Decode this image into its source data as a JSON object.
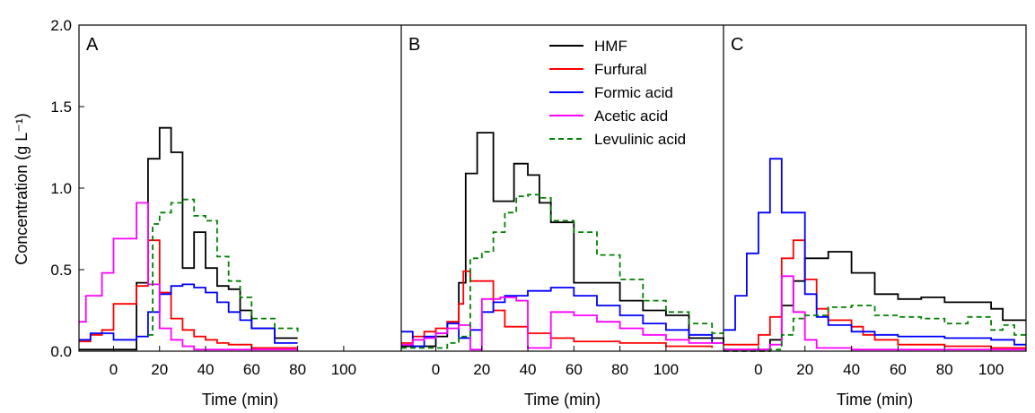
{
  "chart_data": {
    "type": "line",
    "ylabel": "Concentration (g L⁻¹)",
    "ylim": [
      0,
      2.0
    ],
    "yticks": [
      "0.0",
      "0.5",
      "1.0",
      "1.5",
      "2.0"
    ],
    "series_styles": [
      {
        "name": "HMF",
        "color": "#000000",
        "dashed": false
      },
      {
        "name": "Furfural",
        "color": "#ff0000",
        "dashed": false
      },
      {
        "name": "Formic acid",
        "color": "#0000ff",
        "dashed": false
      },
      {
        "name": "Acetic acid",
        "color": "#ff00ff",
        "dashed": false
      },
      {
        "name": "Levulinic acid",
        "color": "#008000",
        "dashed": true
      }
    ],
    "legend_position": "top-right of panel B",
    "panels": [
      {
        "label": "A",
        "xlabel": "Time (min)",
        "xlim": [
          -15,
          125
        ],
        "xticks": [
          0,
          20,
          40,
          60,
          80,
          100
        ],
        "steps": {
          "HMF": [
            [
              -15,
              0.01
            ],
            [
              10,
              0.42
            ],
            [
              15,
              1.18
            ],
            [
              20,
              1.37
            ],
            [
              25,
              1.22
            ],
            [
              30,
              0.51
            ],
            [
              35,
              0.73
            ],
            [
              40,
              0.51
            ],
            [
              45,
              0.4
            ],
            [
              50,
              0.38
            ],
            [
              55,
              0.25
            ],
            [
              60,
              0.14
            ],
            [
              70,
              0.08
            ],
            [
              80,
              0.08
            ]
          ],
          "Furfural": [
            [
              -15,
              0.06
            ],
            [
              -10,
              0.1
            ],
            [
              -5,
              0.13
            ],
            [
              0,
              0.29
            ],
            [
              10,
              0.4
            ],
            [
              15,
              0.68
            ],
            [
              20,
              0.36
            ],
            [
              25,
              0.2
            ],
            [
              30,
              0.13
            ],
            [
              35,
              0.09
            ],
            [
              40,
              0.07
            ],
            [
              45,
              0.05
            ],
            [
              50,
              0.04
            ],
            [
              60,
              0.02
            ],
            [
              80,
              0.02
            ]
          ],
          "Formic acid": [
            [
              -15,
              0.07
            ],
            [
              -10,
              0.11
            ],
            [
              -5,
              0.11
            ],
            [
              0,
              0.07
            ],
            [
              10,
              0.09
            ],
            [
              15,
              0.24
            ],
            [
              20,
              0.35
            ],
            [
              25,
              0.4
            ],
            [
              30,
              0.41
            ],
            [
              35,
              0.39
            ],
            [
              40,
              0.36
            ],
            [
              45,
              0.3
            ],
            [
              50,
              0.24
            ],
            [
              55,
              0.19
            ],
            [
              60,
              0.14
            ],
            [
              70,
              0.05
            ],
            [
              80,
              0.05
            ]
          ],
          "Acetic acid": [
            [
              -15,
              0.18
            ],
            [
              -12,
              0.34
            ],
            [
              -5,
              0.48
            ],
            [
              0,
              0.69
            ],
            [
              10,
              0.91
            ],
            [
              15,
              0.41
            ],
            [
              20,
              0.14
            ],
            [
              25,
              0.07
            ],
            [
              30,
              0.03
            ],
            [
              35,
              0.01
            ],
            [
              45,
              0.01
            ],
            [
              80,
              0.01
            ]
          ],
          "Levulinic acid": [
            [
              15,
              0.1
            ],
            [
              17,
              0.78
            ],
            [
              20,
              0.85
            ],
            [
              25,
              0.91
            ],
            [
              30,
              0.93
            ],
            [
              35,
              0.83
            ],
            [
              40,
              0.8
            ],
            [
              45,
              0.58
            ],
            [
              50,
              0.43
            ],
            [
              55,
              0.33
            ],
            [
              60,
              0.2
            ],
            [
              70,
              0.14
            ],
            [
              80,
              0.12
            ]
          ]
        }
      },
      {
        "label": "B",
        "xlabel": "Time (min)",
        "xlim": [
          -15,
          125
        ],
        "xticks": [
          0,
          20,
          40,
          60,
          80,
          100
        ],
        "steps": {
          "HMF": [
            [
              -15,
              0.03
            ],
            [
              0,
              0.09
            ],
            [
              5,
              0.18
            ],
            [
              10,
              0.42
            ],
            [
              13,
              1.09
            ],
            [
              18,
              1.34
            ],
            [
              25,
              0.92
            ],
            [
              30,
              0.92
            ],
            [
              34,
              1.15
            ],
            [
              40,
              1.08
            ],
            [
              45,
              0.91
            ],
            [
              50,
              0.79
            ],
            [
              60,
              0.42
            ],
            [
              70,
              0.42
            ],
            [
              80,
              0.31
            ],
            [
              90,
              0.25
            ],
            [
              100,
              0.22
            ],
            [
              110,
              0.08
            ],
            [
              125,
              0.05
            ]
          ],
          "Furfural": [
            [
              -15,
              0.05
            ],
            [
              -10,
              0.09
            ],
            [
              -5,
              0.12
            ],
            [
              0,
              0.14
            ],
            [
              5,
              0.18
            ],
            [
              10,
              0.29
            ],
            [
              12,
              0.49
            ],
            [
              15,
              0.43
            ],
            [
              25,
              0.25
            ],
            [
              30,
              0.15
            ],
            [
              40,
              0.11
            ],
            [
              50,
              0.08
            ],
            [
              60,
              0.06
            ],
            [
              80,
              0.05
            ],
            [
              100,
              0.03
            ],
            [
              120,
              0.02
            ]
          ],
          "Formic acid": [
            [
              -15,
              0.12
            ],
            [
              -10,
              0.03
            ],
            [
              -5,
              0.09
            ],
            [
              0,
              0.11
            ],
            [
              5,
              0.17
            ],
            [
              10,
              0.08
            ],
            [
              15,
              0.13
            ],
            [
              20,
              0.24
            ],
            [
              25,
              0.3
            ],
            [
              30,
              0.34
            ],
            [
              40,
              0.37
            ],
            [
              50,
              0.39
            ],
            [
              60,
              0.34
            ],
            [
              70,
              0.28
            ],
            [
              80,
              0.22
            ],
            [
              90,
              0.17
            ],
            [
              100,
              0.13
            ],
            [
              110,
              0.1
            ],
            [
              120,
              0.05
            ],
            [
              125,
              0.05
            ]
          ],
          "Acetic acid": [
            [
              -15,
              0.04
            ],
            [
              -10,
              0.07
            ],
            [
              -5,
              0.08
            ],
            [
              0,
              0.11
            ],
            [
              5,
              0.14
            ],
            [
              10,
              0.16
            ],
            [
              15,
              0.01
            ],
            [
              20,
              0.32
            ],
            [
              28,
              0.33
            ],
            [
              35,
              0.31
            ],
            [
              40,
              0.02
            ],
            [
              50,
              0.24
            ],
            [
              60,
              0.22
            ],
            [
              70,
              0.18
            ],
            [
              80,
              0.14
            ],
            [
              90,
              0.1
            ],
            [
              100,
              0.07
            ],
            [
              110,
              0.05
            ],
            [
              125,
              0.05
            ]
          ],
          "Levulinic acid": [
            [
              -15,
              0.02
            ],
            [
              5,
              0.05
            ],
            [
              10,
              0.09
            ],
            [
              15,
              0.57
            ],
            [
              20,
              0.61
            ],
            [
              25,
              0.73
            ],
            [
              30,
              0.85
            ],
            [
              35,
              0.95
            ],
            [
              40,
              0.96
            ],
            [
              45,
              0.94
            ],
            [
              50,
              0.8
            ],
            [
              60,
              0.73
            ],
            [
              70,
              0.59
            ],
            [
              80,
              0.44
            ],
            [
              90,
              0.31
            ],
            [
              100,
              0.24
            ],
            [
              110,
              0.17
            ],
            [
              120,
              0.11
            ],
            [
              125,
              0.11
            ]
          ]
        }
      },
      {
        "label": "C",
        "xlabel": "Time (min)",
        "xlim": [
          -15,
          115
        ],
        "xticks": [
          0,
          20,
          40,
          60,
          80,
          100
        ],
        "steps": {
          "HMF": [
            [
              -15,
              0.01
            ],
            [
              0,
              0.01
            ],
            [
              5,
              0.07
            ],
            [
              10,
              0.28
            ],
            [
              15,
              0.43
            ],
            [
              20,
              0.57
            ],
            [
              30,
              0.61
            ],
            [
              40,
              0.48
            ],
            [
              50,
              0.35
            ],
            [
              60,
              0.32
            ],
            [
              70,
              0.33
            ],
            [
              80,
              0.3
            ],
            [
              100,
              0.26
            ],
            [
              105,
              0.19
            ],
            [
              115,
              0.19
            ]
          ],
          "Furfural": [
            [
              -15,
              0.04
            ],
            [
              0,
              0.1
            ],
            [
              5,
              0.21
            ],
            [
              10,
              0.57
            ],
            [
              15,
              0.68
            ],
            [
              20,
              0.44
            ],
            [
              25,
              0.26
            ],
            [
              30,
              0.19
            ],
            [
              40,
              0.15
            ],
            [
              45,
              0.1
            ],
            [
              50,
              0.07
            ],
            [
              60,
              0.04
            ],
            [
              80,
              0.03
            ],
            [
              100,
              0.02
            ],
            [
              115,
              0.02
            ]
          ],
          "Formic acid": [
            [
              -15,
              0.13
            ],
            [
              -10,
              0.34
            ],
            [
              -5,
              0.6
            ],
            [
              0,
              0.85
            ],
            [
              5,
              1.18
            ],
            [
              10,
              0.85
            ],
            [
              20,
              0.35
            ],
            [
              25,
              0.21
            ],
            [
              30,
              0.16
            ],
            [
              40,
              0.12
            ],
            [
              50,
              0.1
            ],
            [
              60,
              0.09
            ],
            [
              80,
              0.08
            ],
            [
              100,
              0.07
            ],
            [
              110,
              0.04
            ],
            [
              115,
              0.04
            ]
          ],
          "Acetic acid": [
            [
              -15,
              0.01
            ],
            [
              0,
              0.01
            ],
            [
              5,
              0.04
            ],
            [
              10,
              0.46
            ],
            [
              15,
              0.24
            ],
            [
              20,
              0.07
            ],
            [
              25,
              0.02
            ],
            [
              40,
              0.01
            ],
            [
              115,
              0.01
            ]
          ],
          "Levulinic acid": [
            [
              -15,
              0.0
            ],
            [
              5,
              0.01
            ],
            [
              10,
              0.1
            ],
            [
              15,
              0.2
            ],
            [
              20,
              0.22
            ],
            [
              30,
              0.27
            ],
            [
              40,
              0.28
            ],
            [
              50,
              0.22
            ],
            [
              60,
              0.21
            ],
            [
              70,
              0.2
            ],
            [
              80,
              0.17
            ],
            [
              90,
              0.21
            ],
            [
              100,
              0.13
            ],
            [
              105,
              0.16
            ],
            [
              110,
              0.1
            ],
            [
              115,
              0.1
            ]
          ]
        }
      }
    ]
  }
}
